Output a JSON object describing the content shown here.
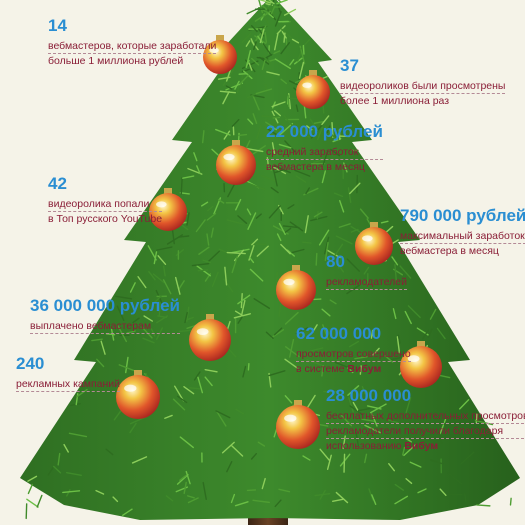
{
  "colors": {
    "background": "#f5f3e8",
    "number": "#2a8ed2",
    "text": "#8a1e37",
    "tree_dark": "#1e5a16",
    "tree_light": "#5aa93a",
    "ornament_red": "#d8322c",
    "ornament_gold": "#e7b437"
  },
  "stats": [
    {
      "value": "14",
      "lines": [
        "вебмастеров, которые заработали",
        "больше 1 миллиона рублей"
      ]
    },
    {
      "value": "37",
      "lines": [
        "видеороликов были просмотрены",
        "более 1 миллиона раз"
      ]
    },
    {
      "value": "22 000 рублей",
      "lines": [
        "средний заработок",
        "вебмастера в месяц"
      ]
    },
    {
      "value": "42",
      "lines": [
        "видеоролика попали",
        "в Топ русского YouTube"
      ]
    },
    {
      "value": "790 000 рублей",
      "lines": [
        "максимальный заработок",
        "вебмастера в месяц"
      ]
    },
    {
      "value": "80",
      "lines": [
        "рекламодателей"
      ]
    },
    {
      "value": "36 000 000 рублей",
      "lines": [
        "выплачено вебмастерам"
      ]
    },
    {
      "value": "62 000 000",
      "lines": [
        "просмотров совершено",
        "в системе"
      ],
      "brand": "Вибум"
    },
    {
      "value": "240",
      "lines": [
        "рекламных кампаний"
      ]
    },
    {
      "value": "28 000 000",
      "lines": [
        "бесплатных дополнительных просмотров",
        "рекламодатели получили благодаря",
        "использованию"
      ],
      "brand": "Вибум"
    }
  ]
}
